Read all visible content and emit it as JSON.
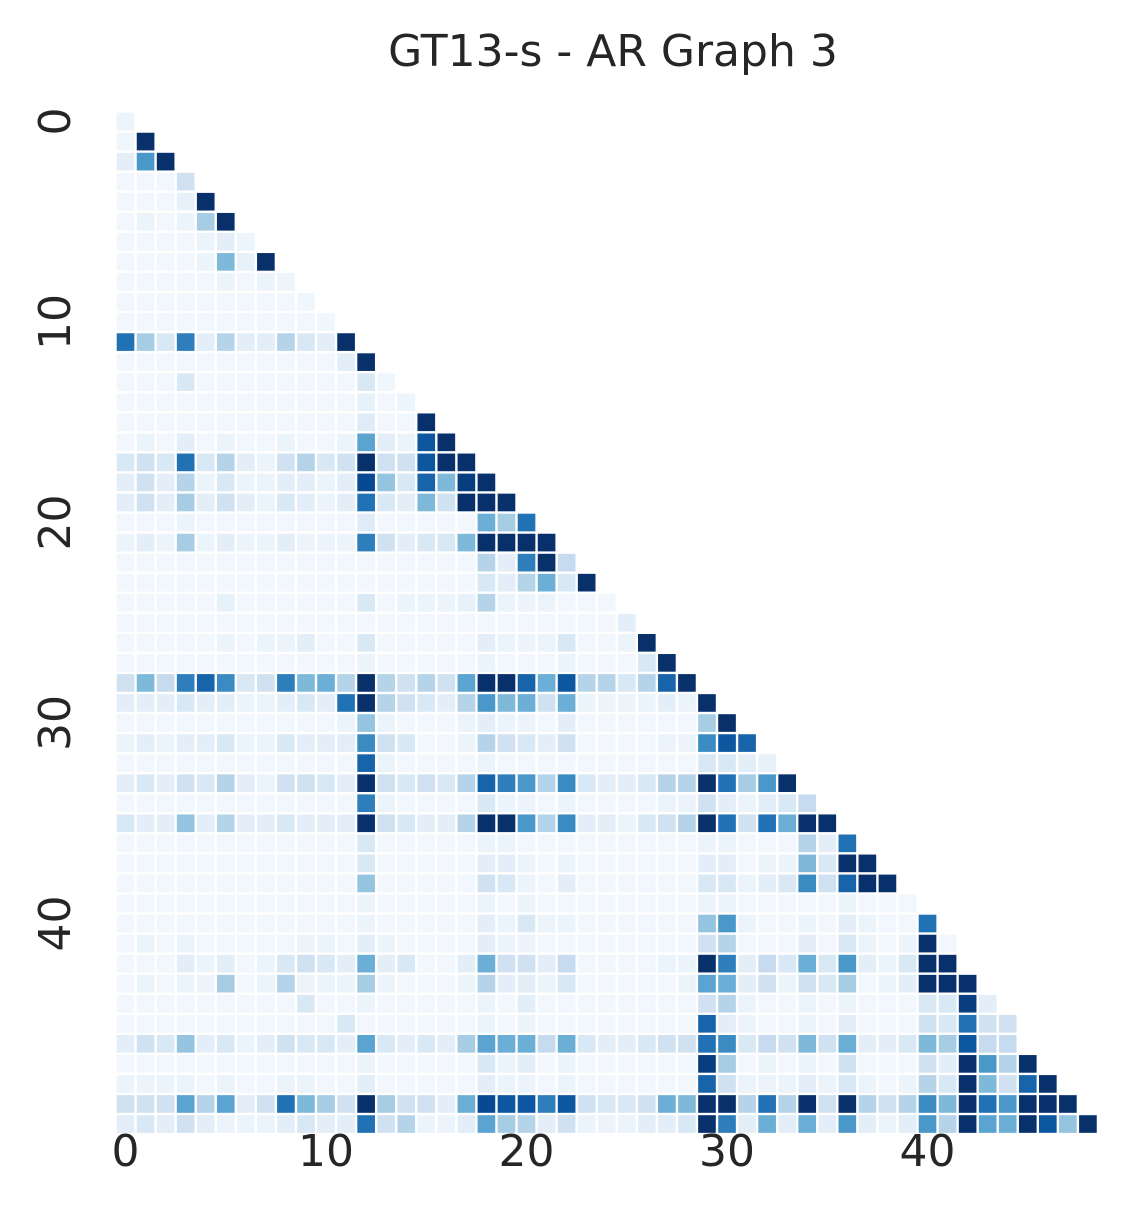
{
  "chart_data": {
    "type": "heatmap",
    "title": "GT13-s - AR Graph 3",
    "n": 49,
    "layout": "lower-triangle",
    "colormap": "Blues",
    "colorscale_range": [
      0,
      1
    ],
    "grid": false,
    "x_ticks": [
      0,
      10,
      20,
      30,
      40
    ],
    "y_ticks": [
      0,
      10,
      20,
      30,
      40
    ],
    "x_tick_labels": [
      "0",
      "10",
      "20",
      "30",
      "40"
    ],
    "y_tick_labels": [
      "0",
      "10",
      "20",
      "30",
      "40"
    ],
    "rows": [
      [
        0.05
      ],
      [
        0.04,
        1.0
      ],
      [
        0.1,
        0.6,
        1.0
      ],
      [
        0.03,
        0.03,
        0.03,
        0.2
      ],
      [
        0.03,
        0.03,
        0.03,
        0.08,
        1.0
      ],
      [
        0.03,
        0.06,
        0.03,
        0.06,
        0.35,
        1.0
      ],
      [
        0.03,
        0.03,
        0.03,
        0.03,
        0.06,
        0.1,
        0.05
      ],
      [
        0.03,
        0.03,
        0.03,
        0.03,
        0.06,
        0.45,
        0.08,
        1.0
      ],
      [
        0.03,
        0.03,
        0.03,
        0.03,
        0.03,
        0.06,
        0.03,
        0.06,
        0.05
      ],
      [
        0.03,
        0.03,
        0.03,
        0.03,
        0.03,
        0.03,
        0.03,
        0.03,
        0.03,
        0.04
      ],
      [
        0.03,
        0.03,
        0.03,
        0.03,
        0.03,
        0.03,
        0.03,
        0.03,
        0.03,
        0.03,
        0.04
      ],
      [
        0.75,
        0.35,
        0.15,
        0.7,
        0.1,
        0.3,
        0.1,
        0.1,
        0.3,
        0.15,
        0.1,
        1.0
      ],
      [
        0.03,
        0.03,
        0.03,
        0.03,
        0.03,
        0.03,
        0.03,
        0.03,
        0.03,
        0.03,
        0.03,
        0.1,
        1.0
      ],
      [
        0.03,
        0.03,
        0.03,
        0.15,
        0.03,
        0.03,
        0.03,
        0.03,
        0.03,
        0.03,
        0.03,
        0.03,
        0.15,
        0.04
      ],
      [
        0.03,
        0.03,
        0.03,
        0.03,
        0.03,
        0.03,
        0.03,
        0.03,
        0.03,
        0.03,
        0.03,
        0.03,
        0.08,
        0.03,
        0.05
      ],
      [
        0.03,
        0.03,
        0.03,
        0.03,
        0.03,
        0.03,
        0.03,
        0.03,
        0.03,
        0.03,
        0.03,
        0.03,
        0.12,
        0.03,
        0.03,
        1.0
      ],
      [
        0.03,
        0.06,
        0.03,
        0.1,
        0.03,
        0.06,
        0.03,
        0.03,
        0.06,
        0.03,
        0.03,
        0.06,
        0.55,
        0.1,
        0.06,
        0.85,
        1.0
      ],
      [
        0.15,
        0.2,
        0.15,
        0.75,
        0.15,
        0.3,
        0.1,
        0.06,
        0.2,
        0.3,
        0.15,
        0.2,
        1.0,
        0.2,
        0.2,
        0.85,
        1.0,
        1.0
      ],
      [
        0.1,
        0.2,
        0.1,
        0.3,
        0.06,
        0.15,
        0.06,
        0.06,
        0.1,
        0.1,
        0.06,
        0.1,
        0.9,
        0.4,
        0.15,
        0.8,
        0.45,
        0.95,
        1.0
      ],
      [
        0.1,
        0.2,
        0.1,
        0.35,
        0.1,
        0.2,
        0.1,
        0.06,
        0.15,
        0.1,
        0.06,
        0.1,
        0.75,
        0.15,
        0.1,
        0.45,
        0.2,
        1.0,
        1.0,
        1.0
      ],
      [
        0.03,
        0.03,
        0.03,
        0.06,
        0.03,
        0.03,
        0.03,
        0.03,
        0.03,
        0.03,
        0.03,
        0.03,
        0.12,
        0.03,
        0.03,
        0.03,
        0.03,
        0.03,
        0.5,
        0.35,
        0.75
      ],
      [
        0.06,
        0.1,
        0.06,
        0.35,
        0.06,
        0.1,
        0.06,
        0.06,
        0.1,
        0.06,
        0.06,
        0.06,
        0.7,
        0.2,
        0.1,
        0.15,
        0.15,
        0.45,
        1.0,
        1.0,
        1.0,
        1.0
      ],
      [
        0.03,
        0.03,
        0.03,
        0.03,
        0.03,
        0.03,
        0.03,
        0.03,
        0.03,
        0.03,
        0.03,
        0.03,
        0.03,
        0.03,
        0.03,
        0.03,
        0.03,
        0.03,
        0.3,
        0.1,
        0.7,
        1.0,
        0.25
      ],
      [
        0.03,
        0.03,
        0.03,
        0.03,
        0.03,
        0.03,
        0.03,
        0.03,
        0.03,
        0.03,
        0.03,
        0.03,
        0.03,
        0.03,
        0.03,
        0.03,
        0.03,
        0.03,
        0.15,
        0.1,
        0.3,
        0.5,
        0.15,
        1.0
      ],
      [
        0.03,
        0.03,
        0.03,
        0.03,
        0.03,
        0.08,
        0.03,
        0.03,
        0.03,
        0.03,
        0.03,
        0.03,
        0.15,
        0.03,
        0.06,
        0.06,
        0.06,
        0.08,
        0.3,
        0.06,
        0.06,
        0.06,
        0.03,
        0.03,
        0.03
      ],
      [
        0.03,
        0.03,
        0.03,
        0.03,
        0.03,
        0.03,
        0.03,
        0.03,
        0.03,
        0.03,
        0.03,
        0.03,
        0.03,
        0.03,
        0.03,
        0.03,
        0.03,
        0.03,
        0.03,
        0.03,
        0.03,
        0.03,
        0.03,
        0.03,
        0.03,
        0.1
      ],
      [
        0.03,
        0.03,
        0.03,
        0.03,
        0.03,
        0.06,
        0.03,
        0.06,
        0.06,
        0.1,
        0.03,
        0.03,
        0.15,
        0.03,
        0.03,
        0.03,
        0.03,
        0.03,
        0.1,
        0.06,
        0.06,
        0.06,
        0.15,
        0.03,
        0.03,
        0.06,
        1.0
      ],
      [
        0.03,
        0.03,
        0.03,
        0.03,
        0.03,
        0.03,
        0.03,
        0.03,
        0.03,
        0.03,
        0.03,
        0.03,
        0.06,
        0.03,
        0.03,
        0.03,
        0.03,
        0.03,
        0.06,
        0.03,
        0.03,
        0.03,
        0.06,
        0.03,
        0.03,
        0.03,
        0.15,
        1.0
      ],
      [
        0.2,
        0.45,
        0.25,
        0.7,
        0.8,
        0.65,
        0.15,
        0.2,
        0.7,
        0.45,
        0.5,
        0.3,
        1.0,
        0.3,
        0.2,
        0.3,
        0.2,
        0.55,
        1.0,
        1.0,
        0.8,
        0.5,
        0.85,
        0.3,
        0.3,
        0.15,
        0.3,
        0.8,
        1.0
      ],
      [
        0.1,
        0.1,
        0.1,
        0.15,
        0.1,
        0.1,
        0.06,
        0.06,
        0.1,
        0.15,
        0.1,
        0.75,
        1.0,
        0.3,
        0.2,
        0.15,
        0.1,
        0.3,
        0.6,
        0.45,
        0.5,
        0.2,
        0.5,
        0.06,
        0.06,
        0.06,
        0.06,
        0.1,
        0.06,
        1.0
      ],
      [
        0.03,
        0.03,
        0.03,
        0.03,
        0.03,
        0.03,
        0.03,
        0.03,
        0.03,
        0.03,
        0.03,
        0.06,
        0.4,
        0.06,
        0.03,
        0.03,
        0.03,
        0.06,
        0.1,
        0.06,
        0.06,
        0.03,
        0.1,
        0.03,
        0.03,
        0.03,
        0.03,
        0.03,
        0.03,
        0.35,
        1.0
      ],
      [
        0.06,
        0.1,
        0.06,
        0.1,
        0.1,
        0.15,
        0.06,
        0.06,
        0.15,
        0.1,
        0.1,
        0.1,
        0.65,
        0.2,
        0.15,
        0.03,
        0.03,
        0.06,
        0.3,
        0.2,
        0.15,
        0.1,
        0.2,
        0.03,
        0.03,
        0.03,
        0.03,
        0.06,
        0.06,
        0.65,
        0.85,
        0.8
      ],
      [
        0.03,
        0.03,
        0.03,
        0.03,
        0.03,
        0.03,
        0.03,
        0.03,
        0.03,
        0.03,
        0.03,
        0.03,
        0.8,
        0.06,
        0.03,
        0.03,
        0.03,
        0.03,
        0.06,
        0.03,
        0.03,
        0.03,
        0.03,
        0.03,
        0.03,
        0.03,
        0.03,
        0.03,
        0.03,
        0.15,
        0.15,
        0.1,
        0.08
      ],
      [
        0.1,
        0.15,
        0.1,
        0.2,
        0.15,
        0.3,
        0.1,
        0.06,
        0.2,
        0.2,
        0.15,
        0.1,
        1.0,
        0.2,
        0.15,
        0.2,
        0.15,
        0.3,
        0.8,
        0.7,
        0.6,
        0.3,
        0.65,
        0.15,
        0.1,
        0.1,
        0.15,
        0.3,
        0.3,
        1.0,
        0.75,
        0.35,
        0.6,
        1.0
      ],
      [
        0.03,
        0.03,
        0.03,
        0.03,
        0.03,
        0.03,
        0.03,
        0.03,
        0.03,
        0.03,
        0.03,
        0.03,
        0.7,
        0.06,
        0.03,
        0.03,
        0.03,
        0.03,
        0.15,
        0.06,
        0.06,
        0.03,
        0.06,
        0.03,
        0.03,
        0.03,
        0.03,
        0.06,
        0.06,
        0.2,
        0.1,
        0.06,
        0.1,
        0.15,
        0.25
      ],
      [
        0.15,
        0.1,
        0.1,
        0.4,
        0.1,
        0.3,
        0.1,
        0.1,
        0.15,
        0.1,
        0.1,
        0.1,
        1.0,
        0.2,
        0.15,
        0.1,
        0.1,
        0.3,
        1.0,
        1.0,
        0.6,
        0.3,
        0.65,
        0.1,
        0.1,
        0.06,
        0.15,
        0.2,
        0.3,
        1.0,
        0.75,
        0.2,
        0.75,
        0.5,
        1.0,
        1.0
      ],
      [
        0.03,
        0.03,
        0.03,
        0.03,
        0.03,
        0.03,
        0.03,
        0.03,
        0.03,
        0.03,
        0.03,
        0.03,
        0.15,
        0.03,
        0.03,
        0.03,
        0.03,
        0.03,
        0.06,
        0.06,
        0.03,
        0.03,
        0.03,
        0.03,
        0.03,
        0.03,
        0.03,
        0.03,
        0.03,
        0.06,
        0.06,
        0.03,
        0.03,
        0.03,
        0.3,
        0.1,
        0.75
      ],
      [
        0.03,
        0.03,
        0.03,
        0.03,
        0.03,
        0.03,
        0.03,
        0.03,
        0.03,
        0.03,
        0.03,
        0.03,
        0.15,
        0.03,
        0.03,
        0.03,
        0.03,
        0.03,
        0.1,
        0.1,
        0.06,
        0.03,
        0.06,
        0.03,
        0.03,
        0.03,
        0.03,
        0.03,
        0.03,
        0.1,
        0.1,
        0.03,
        0.06,
        0.06,
        0.45,
        0.15,
        1.0,
        1.0
      ],
      [
        0.03,
        0.03,
        0.03,
        0.03,
        0.03,
        0.03,
        0.03,
        0.03,
        0.03,
        0.03,
        0.03,
        0.03,
        0.4,
        0.03,
        0.03,
        0.03,
        0.03,
        0.03,
        0.2,
        0.15,
        0.06,
        0.03,
        0.1,
        0.03,
        0.03,
        0.03,
        0.03,
        0.03,
        0.03,
        0.15,
        0.15,
        0.06,
        0.1,
        0.15,
        0.65,
        0.2,
        0.8,
        1.0,
        1.0
      ],
      [
        0.03,
        0.03,
        0.03,
        0.03,
        0.03,
        0.03,
        0.03,
        0.03,
        0.03,
        0.03,
        0.03,
        0.03,
        0.06,
        0.03,
        0.03,
        0.03,
        0.03,
        0.03,
        0.06,
        0.03,
        0.06,
        0.03,
        0.03,
        0.03,
        0.03,
        0.03,
        0.03,
        0.03,
        0.03,
        0.06,
        0.06,
        0.03,
        0.03,
        0.03,
        0.03,
        0.03,
        0.06,
        0.03,
        0.03,
        0.03
      ],
      [
        0.03,
        0.03,
        0.03,
        0.03,
        0.03,
        0.03,
        0.03,
        0.03,
        0.03,
        0.03,
        0.03,
        0.03,
        0.06,
        0.03,
        0.03,
        0.03,
        0.03,
        0.03,
        0.1,
        0.06,
        0.15,
        0.06,
        0.06,
        0.03,
        0.03,
        0.03,
        0.03,
        0.03,
        0.03,
        0.4,
        0.6,
        0.06,
        0.03,
        0.03,
        0.06,
        0.03,
        0.1,
        0.06,
        0.03,
        0.03,
        0.75
      ],
      [
        0.03,
        0.06,
        0.03,
        0.06,
        0.03,
        0.03,
        0.03,
        0.03,
        0.03,
        0.06,
        0.06,
        0.03,
        0.1,
        0.06,
        0.03,
        0.03,
        0.03,
        0.03,
        0.1,
        0.06,
        0.06,
        0.03,
        0.03,
        0.03,
        0.03,
        0.03,
        0.03,
        0.03,
        0.03,
        0.2,
        0.3,
        0.03,
        0.03,
        0.03,
        0.1,
        0.03,
        0.15,
        0.06,
        0.03,
        0.06,
        1.0,
        0.03
      ],
      [
        0.03,
        0.03,
        0.03,
        0.1,
        0.06,
        0.1,
        0.03,
        0.06,
        0.15,
        0.2,
        0.15,
        0.1,
        0.5,
        0.1,
        0.15,
        0.03,
        0.03,
        0.1,
        0.5,
        0.2,
        0.2,
        0.1,
        0.25,
        0.03,
        0.03,
        0.03,
        0.03,
        0.06,
        0.06,
        1.0,
        0.7,
        0.1,
        0.25,
        0.15,
        0.5,
        0.15,
        0.6,
        0.1,
        0.06,
        0.15,
        1.0,
        1.0
      ],
      [
        0.03,
        0.06,
        0.03,
        0.06,
        0.06,
        0.35,
        0.03,
        0.06,
        0.3,
        0.06,
        0.06,
        0.06,
        0.35,
        0.06,
        0.03,
        0.03,
        0.03,
        0.06,
        0.3,
        0.1,
        0.1,
        0.06,
        0.15,
        0.03,
        0.03,
        0.03,
        0.03,
        0.03,
        0.06,
        0.55,
        0.5,
        0.1,
        0.2,
        0.06,
        0.2,
        0.15,
        0.35,
        0.03,
        0.06,
        0.1,
        1.0,
        1.0,
        1.0
      ],
      [
        0.03,
        0.03,
        0.03,
        0.03,
        0.03,
        0.03,
        0.03,
        0.03,
        0.03,
        0.15,
        0.03,
        0.03,
        0.06,
        0.03,
        0.03,
        0.03,
        0.03,
        0.03,
        0.06,
        0.03,
        0.1,
        0.03,
        0.03,
        0.03,
        0.03,
        0.03,
        0.03,
        0.03,
        0.03,
        0.2,
        0.3,
        0.06,
        0.03,
        0.03,
        0.06,
        0.03,
        0.06,
        0.03,
        0.03,
        0.03,
        0.15,
        0.15,
        0.95,
        0.1
      ],
      [
        0.03,
        0.03,
        0.03,
        0.03,
        0.03,
        0.03,
        0.03,
        0.03,
        0.03,
        0.03,
        0.03,
        0.15,
        0.03,
        0.03,
        0.03,
        0.03,
        0.03,
        0.03,
        0.06,
        0.03,
        0.06,
        0.03,
        0.03,
        0.03,
        0.03,
        0.03,
        0.03,
        0.03,
        0.03,
        0.8,
        0.1,
        0.06,
        0.03,
        0.03,
        0.06,
        0.03,
        0.1,
        0.03,
        0.03,
        0.03,
        0.2,
        0.15,
        0.75,
        0.2,
        0.2
      ],
      [
        0.1,
        0.2,
        0.15,
        0.4,
        0.1,
        0.15,
        0.06,
        0.1,
        0.2,
        0.15,
        0.15,
        0.1,
        0.55,
        0.15,
        0.1,
        0.15,
        0.1,
        0.35,
        0.55,
        0.5,
        0.5,
        0.25,
        0.5,
        0.15,
        0.1,
        0.1,
        0.15,
        0.2,
        0.2,
        0.75,
        0.65,
        0.15,
        0.25,
        0.2,
        0.45,
        0.2,
        0.5,
        0.1,
        0.1,
        0.15,
        0.45,
        0.35,
        0.85,
        0.25,
        0.25
      ],
      [
        0.03,
        0.03,
        0.03,
        0.03,
        0.03,
        0.03,
        0.03,
        0.03,
        0.03,
        0.03,
        0.03,
        0.03,
        0.06,
        0.03,
        0.03,
        0.03,
        0.03,
        0.03,
        0.15,
        0.06,
        0.1,
        0.03,
        0.06,
        0.03,
        0.03,
        0.03,
        0.03,
        0.03,
        0.03,
        0.95,
        0.35,
        0.03,
        0.06,
        0.03,
        0.06,
        0.03,
        0.2,
        0.03,
        0.03,
        0.03,
        0.2,
        0.1,
        1.0,
        0.6,
        0.3,
        1.0
      ],
      [
        0.06,
        0.06,
        0.06,
        0.06,
        0.03,
        0.06,
        0.03,
        0.03,
        0.06,
        0.06,
        0.03,
        0.03,
        0.1,
        0.03,
        0.03,
        0.03,
        0.03,
        0.03,
        0.1,
        0.06,
        0.06,
        0.03,
        0.06,
        0.03,
        0.03,
        0.03,
        0.03,
        0.03,
        0.03,
        0.8,
        0.2,
        0.06,
        0.06,
        0.06,
        0.1,
        0.06,
        0.15,
        0.06,
        0.03,
        0.06,
        0.3,
        0.15,
        1.0,
        0.45,
        0.2,
        0.8,
        1.0
      ],
      [
        0.2,
        0.2,
        0.2,
        0.55,
        0.3,
        0.55,
        0.1,
        0.2,
        0.75,
        0.45,
        0.35,
        0.2,
        1.0,
        0.35,
        0.2,
        0.2,
        0.1,
        0.5,
        0.9,
        0.85,
        0.85,
        0.7,
        0.85,
        0.2,
        0.15,
        0.15,
        0.2,
        0.5,
        0.45,
        1.0,
        1.0,
        0.3,
        0.75,
        0.3,
        1.0,
        0.2,
        1.0,
        0.3,
        0.2,
        0.3,
        0.65,
        0.45,
        1.0,
        0.75,
        0.6,
        1.0,
        1.0,
        1.0
      ],
      [
        0.1,
        0.15,
        0.1,
        0.2,
        0.1,
        0.06,
        0.06,
        0.06,
        0.1,
        0.15,
        0.1,
        0.1,
        0.75,
        0.2,
        0.3,
        0.06,
        0.06,
        0.1,
        0.55,
        0.35,
        0.3,
        0.1,
        0.2,
        0.06,
        0.06,
        0.06,
        0.1,
        0.1,
        0.15,
        1.0,
        0.7,
        0.1,
        0.5,
        0.1,
        0.5,
        0.1,
        0.6,
        0.1,
        0.06,
        0.1,
        0.6,
        0.3,
        1.0,
        0.55,
        0.5,
        1.0,
        0.85,
        0.4,
        1.0
      ]
    ]
  }
}
